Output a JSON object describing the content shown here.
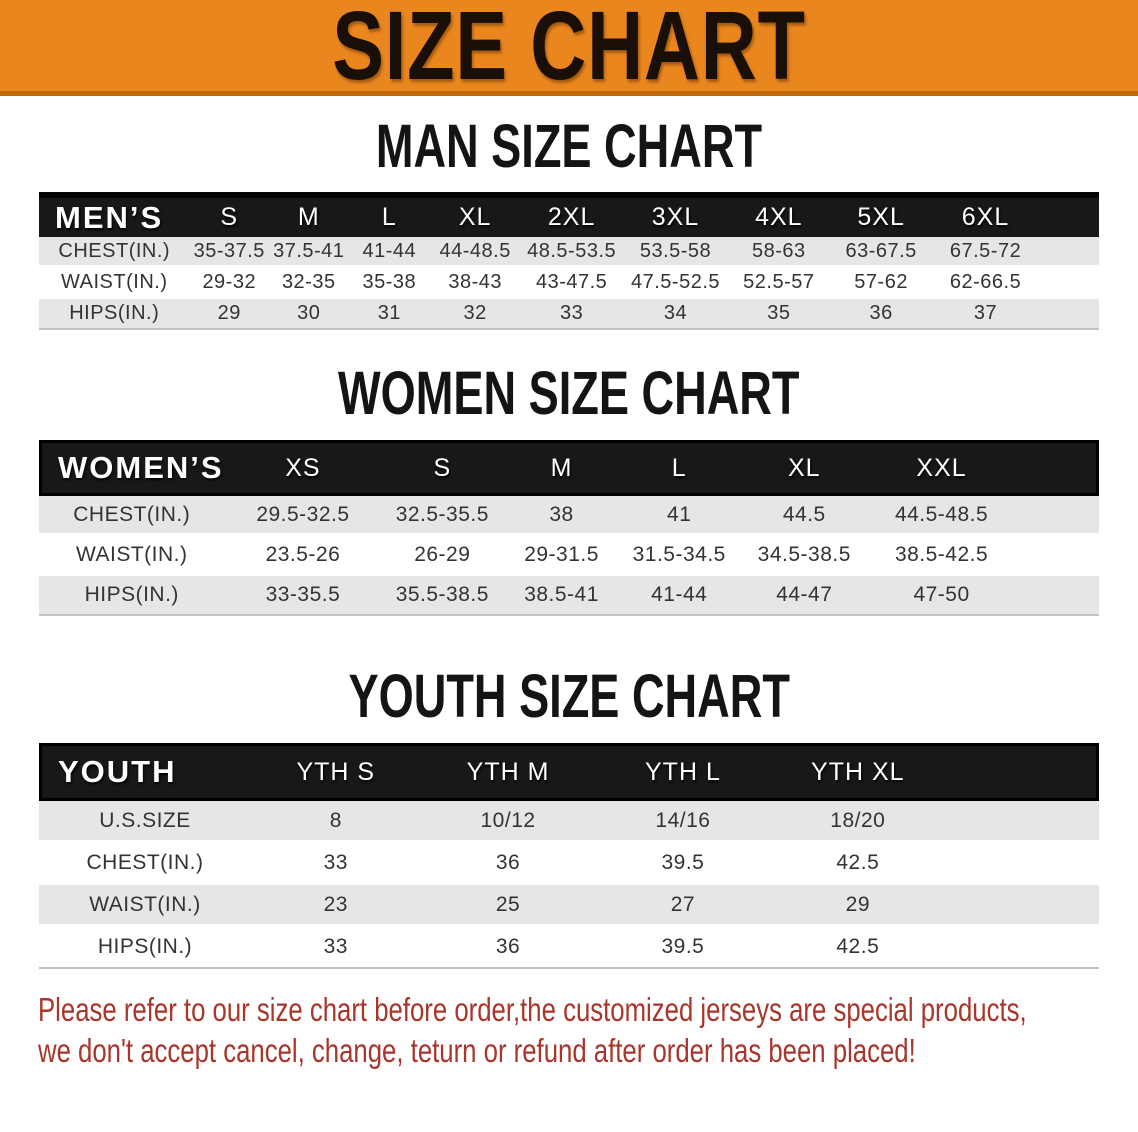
{
  "banner": {
    "title": "SIZE CHART",
    "bg_color": "#EA861E",
    "border_color": "#C4680E",
    "text_color": "#190F06"
  },
  "headings": {
    "men": "MAN SIZE CHART",
    "women": "WOMEN SIZE CHART",
    "youth": "YOUTH SIZE CHART"
  },
  "tables": {
    "men": {
      "corner_label": "MEN’S",
      "sizes": [
        "S",
        "M",
        "L",
        "XL",
        "2XL",
        "3XL",
        "4XL",
        "5XL",
        "6XL"
      ],
      "rows": [
        {
          "label": "CHEST(IN.)",
          "values": [
            "35-37.5",
            "37.5-41",
            "41-44",
            "44-48.5",
            "48.5-53.5",
            "53.5-58",
            "58-63",
            "63-67.5",
            "67.5-72"
          ]
        },
        {
          "label": "WAIST(IN.)",
          "values": [
            "29-32",
            "32-35",
            "35-38",
            "38-43",
            "43-47.5",
            "47.5-52.5",
            "52.5-57",
            "57-62",
            "62-66.5"
          ]
        },
        {
          "label": "HIPS(IN.)",
          "values": [
            "29",
            "30",
            "31",
            "32",
            "33",
            "34",
            "35",
            "36",
            "37"
          ]
        }
      ]
    },
    "women": {
      "corner_label": "WOMEN’S",
      "sizes": [
        "XS",
        "S",
        "M",
        "L",
        "XL",
        "XXL"
      ],
      "rows": [
        {
          "label": "CHEST(IN.)",
          "values": [
            "29.5-32.5",
            "32.5-35.5",
            "38",
            "41",
            "44.5",
            "44.5-48.5"
          ]
        },
        {
          "label": "WAIST(IN.)",
          "values": [
            "23.5-26",
            "26-29",
            "29-31.5",
            "31.5-34.5",
            "34.5-38.5",
            "38.5-42.5"
          ]
        },
        {
          "label": "HIPS(IN.)",
          "values": [
            "33-35.5",
            "35.5-38.5",
            "38.5-41",
            "41-44",
            "44-47",
            "47-50"
          ]
        }
      ]
    },
    "youth": {
      "corner_label": "YOUTH",
      "sizes": [
        "YTH S",
        "YTH M",
        "YTH L",
        "YTH XL"
      ],
      "rows": [
        {
          "label": "U.S.SIZE",
          "values": [
            "8",
            "10/12",
            "14/16",
            "18/20"
          ]
        },
        {
          "label": "CHEST(IN.)",
          "values": [
            "33",
            "36",
            "39.5",
            "42.5"
          ]
        },
        {
          "label": "WAIST(IN.)",
          "values": [
            "23",
            "25",
            "27",
            "29"
          ]
        },
        {
          "label": "HIPS(IN.)",
          "values": [
            "33",
            "36",
            "39.5",
            "42.5"
          ]
        }
      ]
    }
  },
  "disclaimer": {
    "line1": "Please refer to our size chart before order,the customized jerseys are special products,",
    "line2": "we don't accept cancel, change, teturn or refund after order has been placed!",
    "color": "#A8362B"
  },
  "colors": {
    "band_bg": "#181818",
    "row_shade": "#E6E6E6",
    "table_text": "#333333"
  }
}
